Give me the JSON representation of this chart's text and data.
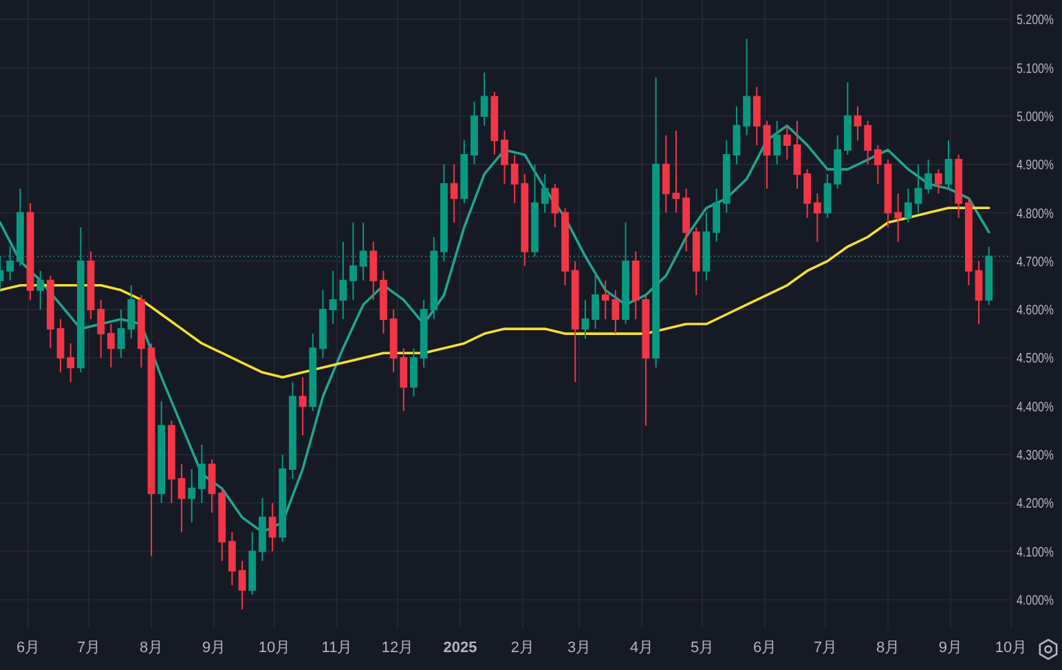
{
  "chart_data": {
    "type": "candlestick",
    "xlim": [
      "2024-05-18",
      "2025-10-01"
    ],
    "ylim": [
      3.94,
      5.24
    ],
    "xticks": [
      {
        "value": "2024-06-01",
        "label": "6月"
      },
      {
        "value": "2024-07-01",
        "label": "7月"
      },
      {
        "value": "2024-08-01",
        "label": "8月"
      },
      {
        "value": "2024-09-01",
        "label": "9月"
      },
      {
        "value": "2024-10-01",
        "label": "10月"
      },
      {
        "value": "2024-11-01",
        "label": "11月"
      },
      {
        "value": "2024-12-01",
        "label": "12月"
      },
      {
        "value": "2025-01-01",
        "label": "2025"
      },
      {
        "value": "2025-02-01",
        "label": "2月"
      },
      {
        "value": "2025-03-01",
        "label": "3月"
      },
      {
        "value": "2025-04-01",
        "label": "4月"
      },
      {
        "value": "2025-05-01",
        "label": "5月"
      },
      {
        "value": "2025-06-01",
        "label": "6月"
      },
      {
        "value": "2025-07-01",
        "label": "7月"
      },
      {
        "value": "2025-08-01",
        "label": "8月"
      },
      {
        "value": "2025-09-01",
        "label": "9月"
      },
      {
        "value": "2025-10-01",
        "label": "10月"
      }
    ],
    "yticks": [
      {
        "value": 4.0,
        "label": "4.000%"
      },
      {
        "value": 4.1,
        "label": "4.100%"
      },
      {
        "value": 4.2,
        "label": "4.200%"
      },
      {
        "value": 4.3,
        "label": "4.300%"
      },
      {
        "value": 4.4,
        "label": "4.400%"
      },
      {
        "value": 4.5,
        "label": "4.500%"
      },
      {
        "value": 4.6,
        "label": "4.600%"
      },
      {
        "value": 4.7,
        "label": "4.700%"
      },
      {
        "value": 4.8,
        "label": "4.800%"
      },
      {
        "value": 4.9,
        "label": "4.900%"
      },
      {
        "value": 5.0,
        "label": "5.000%"
      },
      {
        "value": 5.1,
        "label": "5.100%"
      },
      {
        "value": 5.2,
        "label": "5.200%"
      }
    ],
    "grid": true,
    "ref_lines": [
      {
        "axis": "y",
        "value": 4.71,
        "color": "#2f6e6a",
        "line_style": "dotted"
      }
    ],
    "series": [
      {
        "x": [
          "2024-05-18",
          "2024-05-23",
          "2024-05-28",
          "2024-06-02",
          "2024-06-07",
          "2024-06-12",
          "2024-06-17",
          "2024-06-22",
          "2024-06-27",
          "2024-07-02",
          "2024-07-07",
          "2024-07-12",
          "2024-07-17",
          "2024-07-22",
          "2024-07-27",
          "2024-08-01",
          "2024-08-06",
          "2024-08-11",
          "2024-08-16",
          "2024-08-21",
          "2024-08-26",
          "2024-08-31",
          "2024-09-05",
          "2024-09-10",
          "2024-09-15",
          "2024-09-20",
          "2024-09-25",
          "2024-09-30",
          "2024-10-05",
          "2024-10-10",
          "2024-10-15",
          "2024-10-20",
          "2024-10-25",
          "2024-10-30",
          "2024-11-04",
          "2024-11-09",
          "2024-11-14",
          "2024-11-19",
          "2024-11-24",
          "2024-11-29",
          "2024-12-04",
          "2024-12-09",
          "2024-12-14",
          "2024-12-19",
          "2024-12-24",
          "2024-12-29",
          "2025-01-03",
          "2025-01-08",
          "2025-01-13",
          "2025-01-18",
          "2025-01-23",
          "2025-01-28",
          "2025-02-02",
          "2025-02-07",
          "2025-02-12",
          "2025-02-17",
          "2025-02-22",
          "2025-02-27",
          "2025-03-04",
          "2025-03-09",
          "2025-03-14",
          "2025-03-19",
          "2025-03-24",
          "2025-03-29",
          "2025-04-03",
          "2025-04-08",
          "2025-04-13",
          "2025-04-18",
          "2025-04-23",
          "2025-04-28",
          "2025-05-03",
          "2025-05-08",
          "2025-05-13",
          "2025-05-18",
          "2025-05-23",
          "2025-05-28",
          "2025-06-02",
          "2025-06-07",
          "2025-06-12",
          "2025-06-17",
          "2025-06-22",
          "2025-06-27",
          "2025-07-02",
          "2025-07-07",
          "2025-07-12",
          "2025-07-17",
          "2025-07-22",
          "2025-07-27",
          "2025-08-01",
          "2025-08-06",
          "2025-08-11",
          "2025-08-16",
          "2025-08-21",
          "2025-08-26",
          "2025-08-31",
          "2025-09-05",
          "2025-09-10",
          "2025-09-15",
          "2025-09-20"
        ],
        "ohlc": [
          [
            4.66,
            4.71,
            4.64,
            4.68
          ],
          [
            4.68,
            4.73,
            4.66,
            4.7
          ],
          [
            4.7,
            4.85,
            4.69,
            4.8
          ],
          [
            4.8,
            4.82,
            4.62,
            4.64
          ],
          [
            4.64,
            4.68,
            4.6,
            4.66
          ],
          [
            4.66,
            4.67,
            4.52,
            4.56
          ],
          [
            4.56,
            4.58,
            4.47,
            4.5
          ],
          [
            4.5,
            4.53,
            4.45,
            4.48
          ],
          [
            4.48,
            4.77,
            4.47,
            4.7
          ],
          [
            4.7,
            4.72,
            4.58,
            4.6
          ],
          [
            4.6,
            4.62,
            4.5,
            4.55
          ],
          [
            4.55,
            4.57,
            4.48,
            4.52
          ],
          [
            4.52,
            4.6,
            4.5,
            4.56
          ],
          [
            4.56,
            4.65,
            4.54,
            4.62
          ],
          [
            4.62,
            4.63,
            4.48,
            4.52
          ],
          [
            4.52,
            4.53,
            4.09,
            4.22
          ],
          [
            4.22,
            4.41,
            4.2,
            4.36
          ],
          [
            4.36,
            4.37,
            4.2,
            4.25
          ],
          [
            4.25,
            4.28,
            4.14,
            4.21
          ],
          [
            4.21,
            4.27,
            4.16,
            4.23
          ],
          [
            4.23,
            4.32,
            4.2,
            4.28
          ],
          [
            4.28,
            4.29,
            4.18,
            4.22
          ],
          [
            4.22,
            4.23,
            4.08,
            4.12
          ],
          [
            4.12,
            4.14,
            4.03,
            4.06
          ],
          [
            4.06,
            4.08,
            3.98,
            4.02
          ],
          [
            4.02,
            4.14,
            4.01,
            4.1
          ],
          [
            4.1,
            4.21,
            4.08,
            4.17
          ],
          [
            4.17,
            4.2,
            4.1,
            4.13
          ],
          [
            4.13,
            4.3,
            4.12,
            4.27
          ],
          [
            4.27,
            4.45,
            4.25,
            4.42
          ],
          [
            4.42,
            4.46,
            4.34,
            4.4
          ],
          [
            4.4,
            4.55,
            4.39,
            4.52
          ],
          [
            4.52,
            4.64,
            4.5,
            4.6
          ],
          [
            4.6,
            4.68,
            4.57,
            4.62
          ],
          [
            4.62,
            4.74,
            4.58,
            4.66
          ],
          [
            4.66,
            4.78,
            4.62,
            4.69
          ],
          [
            4.69,
            4.78,
            4.66,
            4.72
          ],
          [
            4.72,
            4.74,
            4.62,
            4.66
          ],
          [
            4.66,
            4.68,
            4.55,
            4.58
          ],
          [
            4.58,
            4.6,
            4.47,
            4.5
          ],
          [
            4.5,
            4.52,
            4.39,
            4.44
          ],
          [
            4.44,
            4.52,
            4.42,
            4.5
          ],
          [
            4.5,
            4.62,
            4.48,
            4.6
          ],
          [
            4.6,
            4.75,
            4.58,
            4.72
          ],
          [
            4.72,
            4.9,
            4.7,
            4.86
          ],
          [
            4.86,
            4.9,
            4.78,
            4.83
          ],
          [
            4.83,
            4.95,
            4.82,
            4.92
          ],
          [
            4.92,
            5.03,
            4.9,
            5.0
          ],
          [
            5.0,
            5.09,
            4.98,
            5.04
          ],
          [
            5.04,
            5.05,
            4.92,
            4.95
          ],
          [
            4.95,
            4.97,
            4.86,
            4.9
          ],
          [
            4.9,
            4.92,
            4.82,
            4.86
          ],
          [
            4.86,
            4.88,
            4.69,
            4.72
          ],
          [
            4.72,
            4.9,
            4.71,
            4.82
          ],
          [
            4.82,
            4.88,
            4.8,
            4.85
          ],
          [
            4.85,
            4.86,
            4.77,
            4.8
          ],
          [
            4.8,
            4.81,
            4.65,
            4.68
          ],
          [
            4.68,
            4.7,
            4.45,
            4.56
          ],
          [
            4.56,
            4.62,
            4.54,
            4.58
          ],
          [
            4.58,
            4.67,
            4.56,
            4.63
          ],
          [
            4.63,
            4.66,
            4.58,
            4.62
          ],
          [
            4.62,
            4.64,
            4.55,
            4.58
          ],
          [
            4.58,
            4.78,
            4.57,
            4.7
          ],
          [
            4.7,
            4.72,
            4.58,
            4.62
          ],
          [
            4.62,
            4.63,
            4.36,
            4.5
          ],
          [
            4.5,
            5.08,
            4.48,
            4.9
          ],
          [
            4.9,
            4.96,
            4.8,
            4.84
          ],
          [
            4.84,
            4.97,
            4.8,
            4.83
          ],
          [
            4.83,
            4.85,
            4.72,
            4.76
          ],
          [
            4.76,
            4.77,
            4.63,
            4.68
          ],
          [
            4.68,
            4.8,
            4.66,
            4.76
          ],
          [
            4.76,
            4.85,
            4.74,
            4.82
          ],
          [
            4.82,
            4.95,
            4.8,
            4.92
          ],
          [
            4.92,
            5.02,
            4.9,
            4.98
          ],
          [
            4.98,
            5.16,
            4.96,
            5.04
          ],
          [
            5.04,
            5.06,
            4.94,
            4.98
          ],
          [
            4.98,
            4.99,
            4.85,
            4.92
          ],
          [
            4.92,
            4.99,
            4.9,
            4.96
          ],
          [
            4.96,
            4.98,
            4.91,
            4.94
          ],
          [
            4.94,
            4.99,
            4.85,
            4.88
          ],
          [
            4.88,
            4.89,
            4.79,
            4.82
          ],
          [
            4.82,
            4.84,
            4.74,
            4.8
          ],
          [
            4.8,
            4.88,
            4.79,
            4.86
          ],
          [
            4.86,
            4.96,
            4.85,
            4.93
          ],
          [
            4.93,
            5.07,
            4.92,
            5.0
          ],
          [
            5.0,
            5.02,
            4.95,
            4.98
          ],
          [
            4.98,
            4.99,
            4.9,
            4.93
          ],
          [
            4.93,
            4.94,
            4.86,
            4.9
          ],
          [
            4.9,
            4.91,
            4.77,
            4.8
          ],
          [
            4.8,
            4.84,
            4.74,
            4.79
          ],
          [
            4.79,
            4.85,
            4.78,
            4.82
          ],
          [
            4.82,
            4.9,
            4.8,
            4.85
          ],
          [
            4.85,
            4.91,
            4.84,
            4.88
          ],
          [
            4.88,
            4.89,
            4.84,
            4.86
          ],
          [
            4.86,
            4.95,
            4.85,
            4.91
          ],
          [
            4.91,
            4.92,
            4.79,
            4.82
          ],
          [
            4.82,
            4.83,
            4.65,
            4.68
          ],
          [
            4.68,
            4.7,
            4.57,
            4.62
          ],
          [
            4.62,
            4.73,
            4.61,
            4.71
          ]
        ],
        "colors": [
          "#089981",
          "#089981",
          "#089981",
          "#f23645",
          "#089981",
          "#f23645",
          "#f23645",
          "#f23645",
          "#089981",
          "#f23645",
          "#f23645",
          "#f23645",
          "#089981",
          "#089981",
          "#f23645",
          "#f23645",
          "#089981",
          "#f23645",
          "#f23645",
          "#089981",
          "#089981",
          "#f23645",
          "#f23645",
          "#f23645",
          "#f23645",
          "#089981",
          "#089981",
          "#f23645",
          "#089981",
          "#089981",
          "#f23645",
          "#089981",
          "#089981",
          "#089981",
          "#089981",
          "#089981",
          "#089981",
          "#f23645",
          "#f23645",
          "#f23645",
          "#f23645",
          "#089981",
          "#089981",
          "#089981",
          "#089981",
          "#f23645",
          "#089981",
          "#089981",
          "#089981",
          "#f23645",
          "#f23645",
          "#f23645",
          "#f23645",
          "#089981",
          "#089981",
          "#f23645",
          "#f23645",
          "#f23645",
          "#089981",
          "#089981",
          "#f23645",
          "#f23645",
          "#089981",
          "#f23645",
          "#f23645",
          "#089981",
          "#f23645",
          "#f23645",
          "#f23645",
          "#f23645",
          "#089981",
          "#089981",
          "#089981",
          "#089981",
          "#089981",
          "#f23645",
          "#f23645",
          "#089981",
          "#f23645",
          "#f23645",
          "#f23645",
          "#f23645",
          "#089981",
          "#089981",
          "#089981",
          "#f23645",
          "#f23645",
          "#f23645",
          "#f23645",
          "#f23645",
          "#089981",
          "#089981",
          "#089981",
          "#f23645",
          "#089981",
          "#f23645",
          "#f23645",
          "#f23645",
          "#089981"
        ]
      },
      {
        "type": "line",
        "color": "#1fa58f",
        "x": [
          "2024-05-18",
          "2024-05-28",
          "2024-06-07",
          "2024-06-17",
          "2024-06-27",
          "2024-07-07",
          "2024-07-17",
          "2024-07-27",
          "2024-08-06",
          "2024-08-16",
          "2024-08-26",
          "2024-09-05",
          "2024-09-15",
          "2024-09-25",
          "2024-10-05",
          "2024-10-15",
          "2024-10-25",
          "2024-11-04",
          "2024-11-14",
          "2024-11-24",
          "2024-12-04",
          "2024-12-14",
          "2024-12-24",
          "2025-01-03",
          "2025-01-13",
          "2025-01-23",
          "2025-02-02",
          "2025-02-12",
          "2025-02-22",
          "2025-03-04",
          "2025-03-14",
          "2025-03-24",
          "2025-04-03",
          "2025-04-13",
          "2025-04-23",
          "2025-05-03",
          "2025-05-13",
          "2025-05-23",
          "2025-06-02",
          "2025-06-12",
          "2025-06-22",
          "2025-07-02",
          "2025-07-12",
          "2025-07-22",
          "2025-08-01",
          "2025-08-11",
          "2025-08-21",
          "2025-08-31",
          "2025-09-10",
          "2025-09-20"
        ],
        "values": [
          4.78,
          4.7,
          4.66,
          4.61,
          4.56,
          4.57,
          4.58,
          4.57,
          4.46,
          4.36,
          4.26,
          4.23,
          4.17,
          4.14,
          4.16,
          4.27,
          4.42,
          4.52,
          4.61,
          4.65,
          4.62,
          4.57,
          4.63,
          4.77,
          4.88,
          4.93,
          4.92,
          4.85,
          4.79,
          4.71,
          4.64,
          4.61,
          4.63,
          4.67,
          4.75,
          4.81,
          4.83,
          4.87,
          4.95,
          4.98,
          4.94,
          4.89,
          4.89,
          4.91,
          4.93,
          4.89,
          4.86,
          4.85,
          4.83,
          4.76
        ]
      },
      {
        "type": "line",
        "color": "#f5df2e",
        "x": [
          "2024-05-18",
          "2024-05-28",
          "2024-06-07",
          "2024-06-17",
          "2024-06-27",
          "2024-07-07",
          "2024-07-17",
          "2024-07-27",
          "2024-08-06",
          "2024-08-16",
          "2024-08-26",
          "2024-09-05",
          "2024-09-15",
          "2024-09-25",
          "2024-10-05",
          "2024-10-15",
          "2024-10-25",
          "2024-11-04",
          "2024-11-14",
          "2024-11-24",
          "2024-12-04",
          "2024-12-14",
          "2024-12-24",
          "2025-01-03",
          "2025-01-13",
          "2025-01-23",
          "2025-02-02",
          "2025-02-12",
          "2025-02-22",
          "2025-03-04",
          "2025-03-14",
          "2025-03-24",
          "2025-04-03",
          "2025-04-13",
          "2025-04-23",
          "2025-05-03",
          "2025-05-13",
          "2025-05-23",
          "2025-06-02",
          "2025-06-12",
          "2025-06-22",
          "2025-07-02",
          "2025-07-12",
          "2025-07-22",
          "2025-08-01",
          "2025-08-11",
          "2025-08-21",
          "2025-08-31",
          "2025-09-10",
          "2025-09-20"
        ],
        "values": [
          4.64,
          4.65,
          4.65,
          4.65,
          4.65,
          4.65,
          4.64,
          4.62,
          4.59,
          4.56,
          4.53,
          4.51,
          4.49,
          4.47,
          4.46,
          4.47,
          4.48,
          4.49,
          4.5,
          4.51,
          4.51,
          4.51,
          4.52,
          4.53,
          4.55,
          4.56,
          4.56,
          4.56,
          4.55,
          4.55,
          4.55,
          4.55,
          4.55,
          4.56,
          4.57,
          4.57,
          4.59,
          4.61,
          4.63,
          4.65,
          4.68,
          4.7,
          4.73,
          4.75,
          4.78,
          4.79,
          4.8,
          4.81,
          4.81,
          4.81
        ]
      }
    ]
  }
}
